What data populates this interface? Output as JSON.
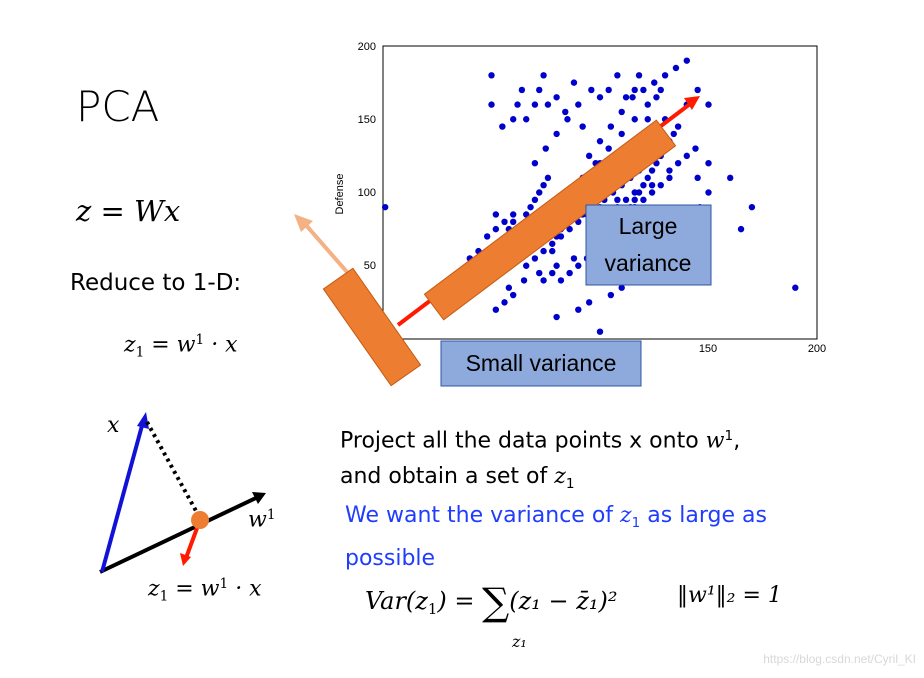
{
  "slide": {
    "title": "PCA",
    "equation_main": "z = Wx",
    "reduce_text": "Reduce to 1-D:",
    "z1_def": {
      "lhs": "z",
      "sub": "1",
      "mid": " = w",
      "sup": "1",
      "rhs": " · x"
    },
    "diagram": {
      "x_label": "x",
      "w_label": "w",
      "w_sup": "1"
    },
    "projection_text": {
      "line1_a": "Project all the data points x onto ",
      "line1_w": "w",
      "line1_sup": "1",
      "line1_end": ",",
      "line2_a": "and obtain a set of ",
      "line2_z": "z",
      "line2_sub": "1"
    },
    "goal_text": {
      "part1": "We want the variance of ",
      "z": "z",
      "sub": "1",
      "part2": " as large as possible"
    },
    "variance_formula": {
      "var": "Var(z",
      "sub": "1",
      "eq": ") = ",
      "sum": "∑",
      "sum_sub": "z₁",
      "body": "(z₁ − z̄₁)²"
    },
    "norm_constraint": "‖w¹‖₂ = 1",
    "watermark": "https://blog.csdn.net/Cyril_KI"
  },
  "chart_data": {
    "type": "scatter",
    "ylabel": "Defense",
    "xlim": [
      0,
      200
    ],
    "ylim": [
      0,
      200
    ],
    "x_ticks": [
      "150",
      "200"
    ],
    "y_ticks": [
      "50",
      "100",
      "150",
      "200"
    ],
    "box_large": "Large variance",
    "box_large_line1": "Large",
    "box_large_line2": "variance",
    "box_small": "Small variance",
    "color_points": "#0000cc",
    "color_red_arrow": "#ff1a00",
    "color_orange": "#ed7d31",
    "color_box_fill": "#8ea9db",
    "points": [
      [
        1,
        90
      ],
      [
        40,
        55
      ],
      [
        52,
        85
      ],
      [
        48,
        45
      ],
      [
        56,
        60
      ],
      [
        58,
        75
      ],
      [
        60,
        80
      ],
      [
        62,
        55
      ],
      [
        64,
        70
      ],
      [
        66,
        85
      ],
      [
        68,
        90
      ],
      [
        70,
        95
      ],
      [
        72,
        100
      ],
      [
        74,
        105
      ],
      [
        76,
        110
      ],
      [
        78,
        60
      ],
      [
        80,
        70
      ],
      [
        82,
        75
      ],
      [
        84,
        80
      ],
      [
        86,
        85
      ],
      [
        88,
        90
      ],
      [
        90,
        95
      ],
      [
        92,
        100
      ],
      [
        94,
        105
      ],
      [
        96,
        110
      ],
      [
        98,
        115
      ],
      [
        100,
        120
      ],
      [
        102,
        60
      ],
      [
        104,
        65
      ],
      [
        106,
        70
      ],
      [
        108,
        75
      ],
      [
        110,
        80
      ],
      [
        112,
        85
      ],
      [
        114,
        90
      ],
      [
        116,
        95
      ],
      [
        118,
        100
      ],
      [
        120,
        105
      ],
      [
        122,
        110
      ],
      [
        124,
        115
      ],
      [
        126,
        120
      ],
      [
        128,
        125
      ],
      [
        130,
        130
      ],
      [
        132,
        135
      ],
      [
        134,
        140
      ],
      [
        136,
        145
      ],
      [
        66,
        50
      ],
      [
        70,
        55
      ],
      [
        74,
        60
      ],
      [
        78,
        65
      ],
      [
        82,
        70
      ],
      [
        86,
        75
      ],
      [
        90,
        80
      ],
      [
        94,
        85
      ],
      [
        98,
        90
      ],
      [
        102,
        95
      ],
      [
        106,
        100
      ],
      [
        110,
        105
      ],
      [
        114,
        110
      ],
      [
        118,
        115
      ],
      [
        122,
        120
      ],
      [
        65,
        40
      ],
      [
        72,
        45
      ],
      [
        80,
        50
      ],
      [
        88,
        55
      ],
      [
        96,
        60
      ],
      [
        104,
        65
      ],
      [
        112,
        70
      ],
      [
        120,
        75
      ],
      [
        128,
        80
      ],
      [
        136,
        85
      ],
      [
        60,
        65
      ],
      [
        68,
        70
      ],
      [
        76,
        75
      ],
      [
        84,
        80
      ],
      [
        92,
        85
      ],
      [
        100,
        90
      ],
      [
        108,
        95
      ],
      [
        116,
        100
      ],
      [
        124,
        105
      ],
      [
        132,
        110
      ],
      [
        70,
        120
      ],
      [
        75,
        130
      ],
      [
        80,
        140
      ],
      [
        85,
        150
      ],
      [
        90,
        160
      ],
      [
        95,
        125
      ],
      [
        100,
        135
      ],
      [
        105,
        145
      ],
      [
        110,
        155
      ],
      [
        115,
        165
      ],
      [
        120,
        170
      ],
      [
        125,
        175
      ],
      [
        130,
        180
      ],
      [
        135,
        185
      ],
      [
        140,
        190
      ],
      [
        50,
        180
      ],
      [
        50,
        160
      ],
      [
        55,
        145
      ],
      [
        60,
        150
      ],
      [
        62,
        160
      ],
      [
        64,
        170
      ],
      [
        66,
        150
      ],
      [
        70,
        160
      ],
      [
        72,
        170
      ],
      [
        74,
        180
      ],
      [
        76,
        160
      ],
      [
        80,
        165
      ],
      [
        84,
        155
      ],
      [
        88,
        175
      ],
      [
        92,
        145
      ],
      [
        96,
        170
      ],
      [
        100,
        165
      ],
      [
        104,
        170
      ],
      [
        108,
        180
      ],
      [
        112,
        165
      ],
      [
        116,
        170
      ],
      [
        118,
        180
      ],
      [
        122,
        150
      ],
      [
        126,
        165
      ],
      [
        140,
        160
      ],
      [
        145,
        170
      ],
      [
        150,
        160
      ],
      [
        150,
        120
      ],
      [
        145,
        110
      ],
      [
        150,
        100
      ],
      [
        160,
        110
      ],
      [
        165,
        75
      ],
      [
        170,
        90
      ],
      [
        190,
        35
      ],
      [
        100,
        5
      ],
      [
        80,
        15
      ],
      [
        90,
        20
      ],
      [
        95,
        25
      ],
      [
        105,
        30
      ],
      [
        110,
        35
      ],
      [
        115,
        40
      ],
      [
        60,
        30
      ],
      [
        56,
        25
      ],
      [
        52,
        20
      ],
      [
        58,
        35
      ],
      [
        86,
        100
      ],
      [
        92,
        110
      ],
      [
        98,
        120
      ],
      [
        104,
        130
      ],
      [
        110,
        140
      ],
      [
        116,
        150
      ],
      [
        122,
        160
      ],
      [
        128,
        170
      ],
      [
        130,
        150
      ],
      [
        126,
        140
      ],
      [
        118,
        130
      ],
      [
        112,
        125
      ],
      [
        106,
        115
      ],
      [
        100,
        105
      ],
      [
        94,
        95
      ],
      [
        88,
        90
      ],
      [
        82,
        85
      ],
      [
        76,
        80
      ],
      [
        70,
        75
      ],
      [
        64,
        70
      ],
      [
        58,
        65
      ],
      [
        74,
        40
      ],
      [
        78,
        45
      ],
      [
        82,
        40
      ],
      [
        86,
        45
      ],
      [
        90,
        50
      ],
      [
        94,
        55
      ],
      [
        98,
        50
      ],
      [
        102,
        45
      ],
      [
        106,
        50
      ],
      [
        110,
        55
      ],
      [
        114,
        60
      ],
      [
        118,
        55
      ],
      [
        122,
        60
      ],
      [
        126,
        65
      ],
      [
        130,
        70
      ],
      [
        134,
        75
      ],
      [
        138,
        80
      ],
      [
        142,
        85
      ],
      [
        146,
        90
      ],
      [
        48,
        70
      ],
      [
        52,
        75
      ],
      [
        56,
        80
      ],
      [
        60,
        85
      ],
      [
        44,
        60
      ],
      [
        46,
        40
      ],
      [
        50,
        50
      ],
      [
        54,
        55
      ],
      [
        96,
        75
      ],
      [
        100,
        80
      ],
      [
        104,
        85
      ],
      [
        108,
        90
      ],
      [
        112,
        95
      ],
      [
        116,
        90
      ],
      [
        120,
        95
      ],
      [
        124,
        100
      ],
      [
        128,
        105
      ],
      [
        132,
        115
      ],
      [
        136,
        120
      ],
      [
        140,
        125
      ],
      [
        144,
        130
      ]
    ]
  }
}
